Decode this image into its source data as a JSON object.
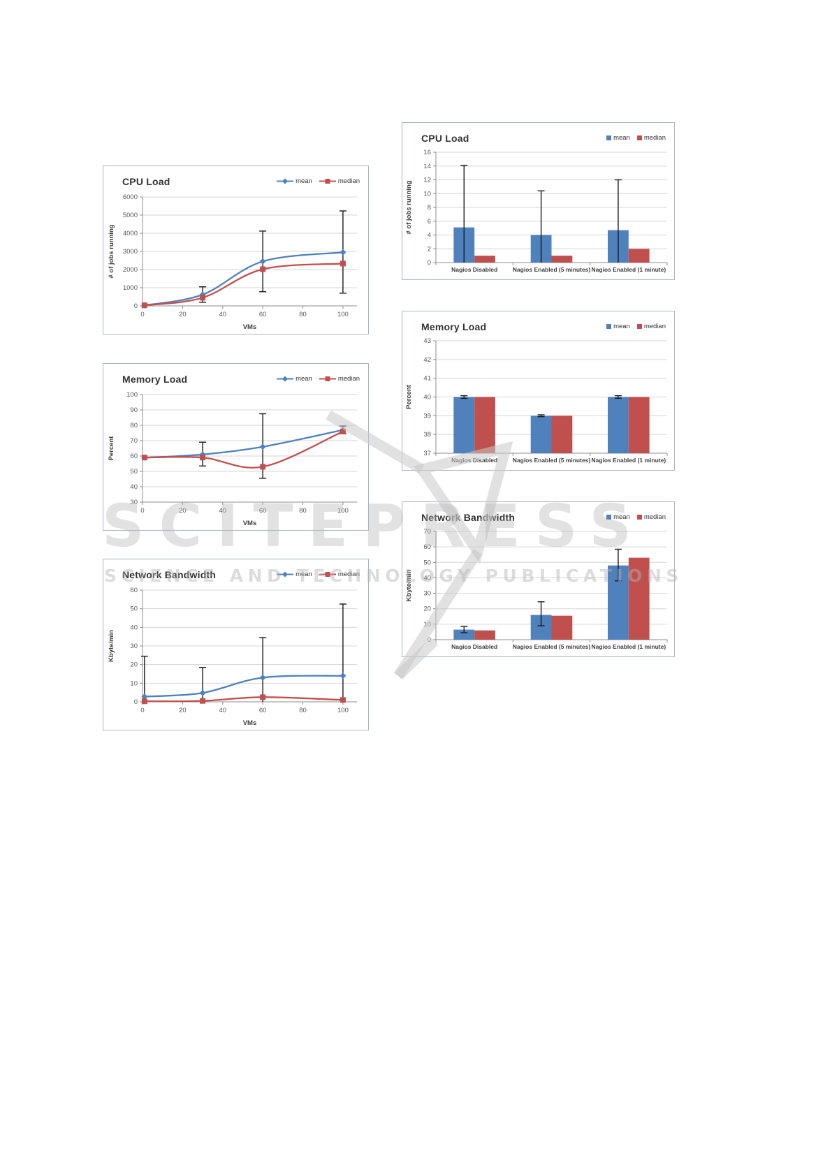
{
  "legend": {
    "mean": "mean",
    "median": "median"
  },
  "colors": {
    "mean": "#4F81BD",
    "median": "#C0504D",
    "error": "#1A1A1A",
    "grid": "#D6D6D6",
    "axis": "#8C8C8C",
    "frame": "#A9B6C4",
    "watermark": "#BEBEBE"
  },
  "watermark": {
    "title": "SCITEPRESS",
    "subtitle": "SCIENCE AND TECHNOLOGY PUBLICATIONS"
  },
  "chart_data": [
    {
      "type": "line",
      "title": "CPU Load",
      "xlabel": "VMs",
      "ylabel": "# of jobs running",
      "xlim": [
        0,
        107
      ],
      "ylim": [
        0,
        6000
      ],
      "xticks": [
        0,
        20,
        40,
        60,
        80,
        100
      ],
      "yticks": [
        0,
        1000,
        2000,
        3000,
        4000,
        5000,
        6000
      ],
      "x": [
        1,
        30,
        60,
        100
      ],
      "series": [
        {
          "name": "mean",
          "color": "#4F81BD",
          "marker": "diamond",
          "values": [
            30,
            620,
            2450,
            2950
          ]
        },
        {
          "name": "median",
          "color": "#C0504D",
          "marker": "square",
          "values": [
            30,
            450,
            2020,
            2330
          ]
        }
      ],
      "error_bars": {
        "on": "mean",
        "x": [
          30,
          60,
          100
        ],
        "low": [
          200,
          780,
          700
        ],
        "high": [
          1050,
          4120,
          5230
        ]
      },
      "legend_position": "top-right",
      "grid": true
    },
    {
      "type": "line",
      "title": "Memory Load",
      "xlabel": "VMs",
      "ylabel": "Percent",
      "xlim": [
        0,
        107
      ],
      "ylim": [
        30,
        100
      ],
      "xticks": [
        0,
        20,
        40,
        60,
        80,
        100
      ],
      "yticks": [
        30,
        40,
        50,
        60,
        70,
        80,
        90,
        100
      ],
      "x": [
        1,
        30,
        60,
        100
      ],
      "series": [
        {
          "name": "mean",
          "color": "#4F81BD",
          "marker": "diamond",
          "values": [
            59,
            61,
            66,
            77
          ]
        },
        {
          "name": "median",
          "color": "#C0504D",
          "marker": "square",
          "values": [
            59,
            59,
            53,
            76
          ]
        }
      ],
      "error_bars": {
        "on": "mean",
        "x": [
          30,
          60,
          100
        ],
        "low": [
          53.5,
          45.5,
          74.5
        ],
        "high": [
          69,
          87.5,
          79.5
        ]
      },
      "legend_position": "top-right",
      "grid": true
    },
    {
      "type": "line",
      "title": "Network Bandwidth",
      "xlabel": "VMs",
      "ylabel": "Kbyte/min",
      "xlim": [
        0,
        107
      ],
      "ylim": [
        0,
        60
      ],
      "xticks": [
        0,
        20,
        40,
        60,
        80,
        100
      ],
      "yticks": [
        0,
        10,
        20,
        30,
        40,
        50,
        60
      ],
      "x": [
        1,
        30,
        60,
        100
      ],
      "series": [
        {
          "name": "mean",
          "color": "#4F81BD",
          "marker": "diamond",
          "values": [
            2.8,
            4.8,
            13,
            14
          ]
        },
        {
          "name": "median",
          "color": "#C0504D",
          "marker": "square",
          "values": [
            0.3,
            0.5,
            2.5,
            1
          ]
        }
      ],
      "error_bars": {
        "on": "mean",
        "x": [
          1,
          30,
          60,
          100
        ],
        "low": [
          0,
          0,
          0,
          0
        ],
        "high": [
          24.5,
          18.5,
          34.5,
          52.5
        ]
      },
      "legend_position": "top-right",
      "grid": true
    },
    {
      "type": "bar",
      "title": "CPU Load",
      "xlabel": "",
      "ylabel": "# of jobs running",
      "ylim": [
        0,
        16
      ],
      "yticks": [
        0,
        2,
        4,
        6,
        8,
        10,
        12,
        14,
        16
      ],
      "categories": [
        "Nagios Disabled",
        "Nagios Enabled (5 minutes)",
        "Nagios Enabled (1 minute)"
      ],
      "series": [
        {
          "name": "mean",
          "color": "#4F81BD",
          "values": [
            5.1,
            4.0,
            4.7
          ]
        },
        {
          "name": "median",
          "color": "#C0504D",
          "values": [
            1,
            1,
            2
          ]
        }
      ],
      "error_bars": {
        "on": "mean",
        "low": [
          0,
          0,
          0
        ],
        "high": [
          14.1,
          10.4,
          12.0
        ]
      },
      "legend_position": "top-right",
      "grid": true
    },
    {
      "type": "bar",
      "title": "Memory Load",
      "xlabel": "",
      "ylabel": "Percent",
      "ylim": [
        37,
        43
      ],
      "yticks": [
        37,
        38,
        39,
        40,
        41,
        42,
        43
      ],
      "categories": [
        "Nagios Disabled",
        "Nagios Enabled (5 minutes)",
        "Nagios Enabled (1 minute)"
      ],
      "series": [
        {
          "name": "mean",
          "color": "#4F81BD",
          "values": [
            40,
            39,
            40
          ]
        },
        {
          "name": "median",
          "color": "#C0504D",
          "values": [
            40,
            39,
            40
          ]
        }
      ],
      "error_bars": {
        "on": "mean",
        "low": [
          39.93,
          38.95,
          39.93
        ],
        "high": [
          40.07,
          39.05,
          40.07
        ]
      },
      "legend_position": "top-right",
      "grid": true
    },
    {
      "type": "bar",
      "title": "Network Bandwidth",
      "xlabel": "",
      "ylabel": "Kbyte/min",
      "ylim": [
        0,
        70
      ],
      "yticks": [
        0,
        10,
        20,
        30,
        40,
        50,
        60,
        70
      ],
      "categories": [
        "Nagios Disabled",
        "Nagios Enabled (5 minutes)",
        "Nagios Enabled (1 minute)"
      ],
      "series": [
        {
          "name": "mean",
          "color": "#4F81BD",
          "values": [
            6.5,
            16,
            48
          ]
        },
        {
          "name": "median",
          "color": "#C0504D",
          "values": [
            6,
            15.5,
            53
          ]
        }
      ],
      "error_bars": {
        "on": "mean",
        "low": [
          4.5,
          9,
          38
        ],
        "high": [
          8.5,
          24.5,
          58.5
        ]
      },
      "legend_position": "top-right",
      "grid": true
    }
  ]
}
